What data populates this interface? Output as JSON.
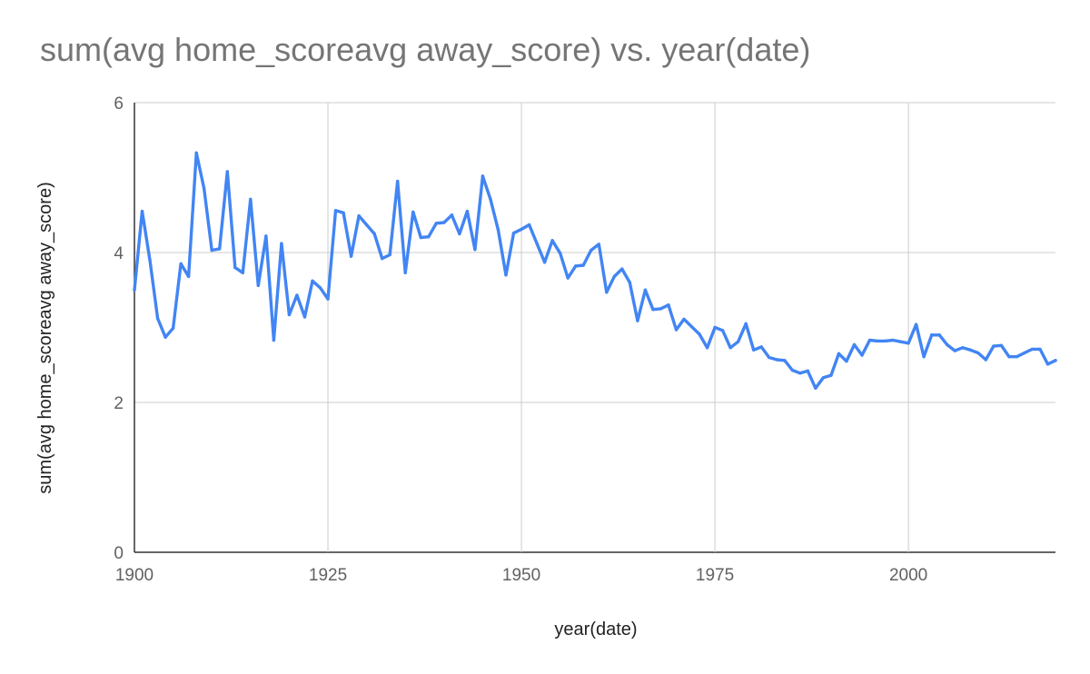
{
  "chart_data": {
    "type": "line",
    "title": "sum(avg home_scoreavg away_score) vs. year(date)",
    "xlabel": "year(date)",
    "ylabel": "sum(avg home_scoreavg away_score)",
    "xlim": [
      1900,
      2019
    ],
    "ylim": [
      0,
      6
    ],
    "x_ticks": [
      1900,
      1925,
      1950,
      1975,
      2000
    ],
    "y_ticks": [
      0,
      2,
      4,
      6
    ],
    "grid": true,
    "legend": "none",
    "line_color": "#4285f4",
    "series": [
      {
        "x": [
          1900,
          1901,
          1902,
          1903,
          1904,
          1905,
          1906,
          1907,
          1908,
          1909,
          1910,
          1911,
          1912,
          1913,
          1914,
          1915,
          1916,
          1917,
          1918,
          1919,
          1920,
          1921,
          1922,
          1923,
          1924,
          1925,
          1926,
          1927,
          1928,
          1929,
          1930,
          1931,
          1932,
          1933,
          1934,
          1935,
          1936,
          1937,
          1938,
          1939,
          1940,
          1941,
          1942,
          1943,
          1944,
          1945,
          1946,
          1947,
          1948,
          1949,
          1950,
          1951,
          1952,
          1953,
          1954,
          1955,
          1956,
          1957,
          1958,
          1959,
          1960,
          1961,
          1962,
          1963,
          1964,
          1965,
          1966,
          1967,
          1968,
          1969,
          1970,
          1971,
          1972,
          1973,
          1974,
          1975,
          1976,
          1977,
          1978,
          1979,
          1980,
          1981,
          1982,
          1983,
          1984,
          1985,
          1986,
          1987,
          1988,
          1989,
          1990,
          1991,
          1992,
          1993,
          1994,
          1995,
          1996,
          1997,
          1998,
          1999,
          2000,
          2001,
          2002,
          2003,
          2004,
          2005,
          2006,
          2007,
          2008,
          2009,
          2010,
          2011,
          2012,
          2013,
          2014,
          2015,
          2016,
          2017,
          2018,
          2019
        ],
        "values": [
          3.5,
          4.55,
          3.9,
          3.12,
          2.87,
          2.99,
          3.85,
          3.68,
          5.33,
          4.85,
          4.03,
          4.05,
          5.08,
          3.8,
          3.73,
          4.71,
          3.56,
          4.22,
          2.83,
          4.12,
          3.17,
          3.43,
          3.14,
          3.62,
          3.53,
          3.38,
          4.56,
          4.53,
          3.95,
          4.49,
          4.37,
          4.25,
          3.92,
          3.97,
          4.95,
          3.73,
          4.54,
          4.2,
          4.21,
          4.39,
          4.4,
          4.5,
          4.25,
          4.55,
          4.04,
          5.02,
          4.71,
          4.3,
          3.7,
          4.26,
          4.31,
          4.37,
          4.12,
          3.87,
          4.16,
          3.99,
          3.66,
          3.82,
          3.83,
          4.03,
          4.11,
          3.47,
          3.68,
          3.78,
          3.6,
          3.09,
          3.5,
          3.24,
          3.25,
          3.3,
          2.97,
          3.11,
          3.01,
          2.91,
          2.73,
          3.0,
          2.96,
          2.73,
          2.81,
          3.05,
          2.7,
          2.74,
          2.6,
          2.57,
          2.56,
          2.43,
          2.39,
          2.42,
          2.19,
          2.33,
          2.36,
          2.65,
          2.55,
          2.77,
          2.63,
          2.83,
          2.82,
          2.82,
          2.83,
          2.81,
          2.79,
          3.04,
          2.61,
          2.9,
          2.9,
          2.77,
          2.69,
          2.73,
          2.7,
          2.66,
          2.57,
          2.75,
          2.76,
          2.61,
          2.61,
          2.66,
          2.71,
          2.71,
          2.51,
          2.56
        ]
      }
    ]
  }
}
